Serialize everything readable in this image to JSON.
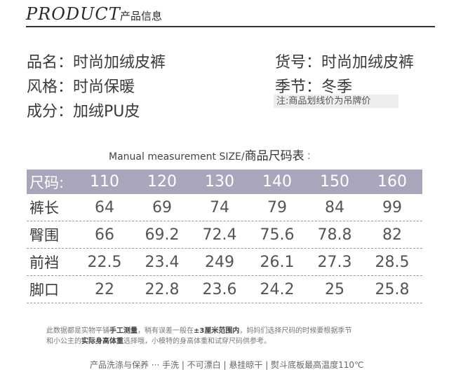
{
  "header": {
    "title_en": "PRODUCT",
    "title_cn": "产品信息"
  },
  "info": {
    "name": "品名：时尚加绒皮裤",
    "style": "风格：时尚保暖",
    "material": "成分：加绒PU皮",
    "sku": "货号：时尚加绒皮裤",
    "season": "季节：冬季",
    "note": "注:商品划线价为吊牌价"
  },
  "size_title": {
    "en": "Manual measurement SIZE/",
    "cn": "商品尺码表",
    "dots": "⠅"
  },
  "table": {
    "header": {
      "label": "尺码:",
      "sizes": [
        "110",
        "120",
        "130",
        "140",
        "150",
        "160"
      ]
    },
    "rows": [
      {
        "label": "裤长",
        "values": [
          "64",
          "69",
          "74",
          "79",
          "84",
          "99"
        ]
      },
      {
        "label": "臀围",
        "values": [
          "66",
          "69.2",
          "72.4",
          "75.6",
          "78.8",
          "82"
        ]
      },
      {
        "label": "前裆",
        "values": [
          "22.5",
          "23.4",
          "249",
          "26.1",
          "27.3",
          "28.5"
        ]
      },
      {
        "label": "脚口",
        "values": [
          "22",
          "22.8",
          "23.6",
          "24.2",
          "25",
          "25.8"
        ]
      }
    ]
  },
  "footnote": {
    "line1_a": "此数据都是实物平铺",
    "line1_b": "手工测量",
    "line1_c": "，稍有误差一般在",
    "line1_d": "±3厘米范围内",
    "line1_e": "，妈妈们选择尺码的时候要根据季节",
    "line2_a": "和小公主的",
    "line2_b": "实际身高体重",
    "line2_c": "选择哦，小模特的身高体重和试穿尺码供参考。"
  },
  "care": "产品洗涤与保养 ··· 手洗 | 不可漂白 | 悬挂晾干 | 熨斗底板最高温度110℃"
}
